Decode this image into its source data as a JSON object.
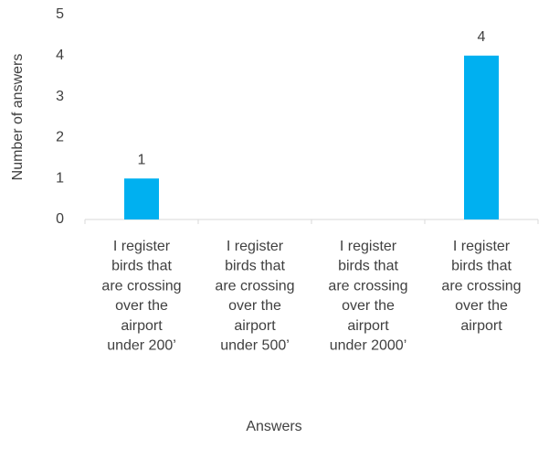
{
  "chart_data": {
    "type": "bar",
    "x_label": "Answers",
    "y_label": "Number of answers",
    "categories": [
      "I register\nbirds that\nare crossing\nover the\nairport\nunder 200’",
      "I register\nbirds that\nare crossing\nover the\nairport\nunder 500’",
      "I register\nbirds that\nare crossing\nover the\nairport\nunder 2000’",
      "I register\nbirds that\nare crossing\nover the\nairport"
    ],
    "values": [
      1,
      0,
      0,
      4
    ],
    "color": "#00b0f0",
    "ylim": [
      0,
      5
    ],
    "yticks": [
      0,
      1,
      2,
      3,
      4,
      5
    ],
    "grid": false,
    "data_labels": true
  }
}
